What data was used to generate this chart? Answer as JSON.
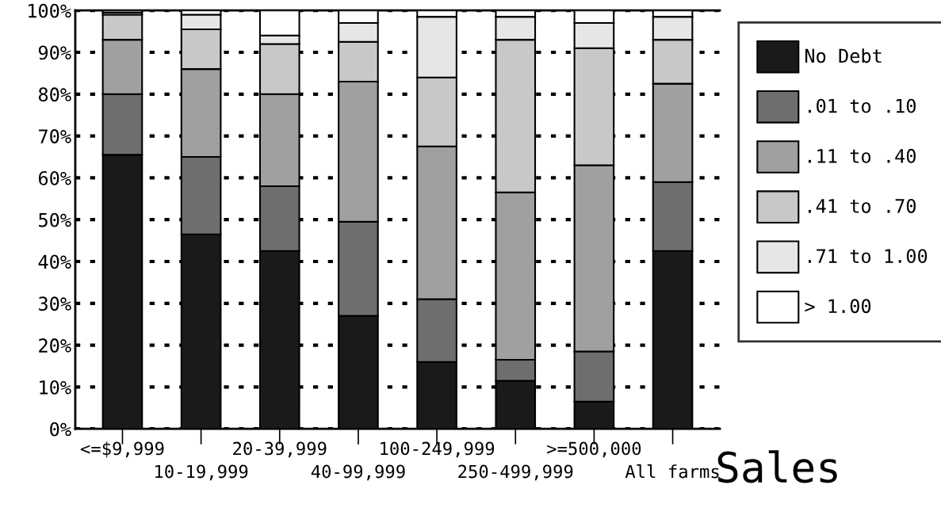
{
  "chart_data": {
    "type": "bar",
    "stacked": true,
    "xlabel": "Sales",
    "categories": [
      "<=$9,999",
      "10-19,999",
      "20-39,999",
      "40-99,999",
      "100-249,999",
      "250-499,999",
      ">=500,000",
      "All farms"
    ],
    "series": [
      {
        "name": "No Debt",
        "color": "#1a1a1a",
        "values": [
          65.5,
          46.5,
          42.5,
          27,
          16,
          11.5,
          6.5,
          42.5
        ]
      },
      {
        "name": ".01 to .10",
        "color": "#6e6e6e",
        "values": [
          14.5,
          18.5,
          15.5,
          22.5,
          15,
          5,
          12,
          16.5
        ]
      },
      {
        "name": ".11 to .40",
        "color": "#a0a0a0",
        "values": [
          13,
          21,
          22,
          33.5,
          36.5,
          40,
          44.5,
          23.5
        ]
      },
      {
        "name": ".41 to .70",
        "color": "#c8c8c8",
        "values": [
          6,
          9.5,
          12,
          9.5,
          16.5,
          36.5,
          28,
          10.5
        ]
      },
      {
        "name": ".71 to 1.00",
        "color": "#e6e6e6",
        "values": [
          0.5,
          3.5,
          2,
          4.5,
          14.5,
          5.5,
          6,
          5.5
        ]
      },
      {
        "name": "> 1.00",
        "color": "#ffffff",
        "values": [
          0.5,
          1,
          6,
          3,
          1.5,
          1.5,
          3,
          1.5
        ]
      }
    ],
    "ylim": [
      0,
      100
    ],
    "yticks": [
      {
        "value": 0,
        "label": "0%"
      },
      {
        "value": 10,
        "label": "10%"
      },
      {
        "value": 20,
        "label": "20%"
      },
      {
        "value": 30,
        "label": "30%"
      },
      {
        "value": 40,
        "label": "40%"
      },
      {
        "value": 50,
        "label": "50%"
      },
      {
        "value": 60,
        "label": "60%"
      },
      {
        "value": 70,
        "label": "70%"
      },
      {
        "value": 80,
        "label": "80%"
      },
      {
        "value": 90,
        "label": "90%"
      },
      {
        "value": 100,
        "label": "100%"
      }
    ],
    "grid": "y",
    "legend": "right"
  }
}
